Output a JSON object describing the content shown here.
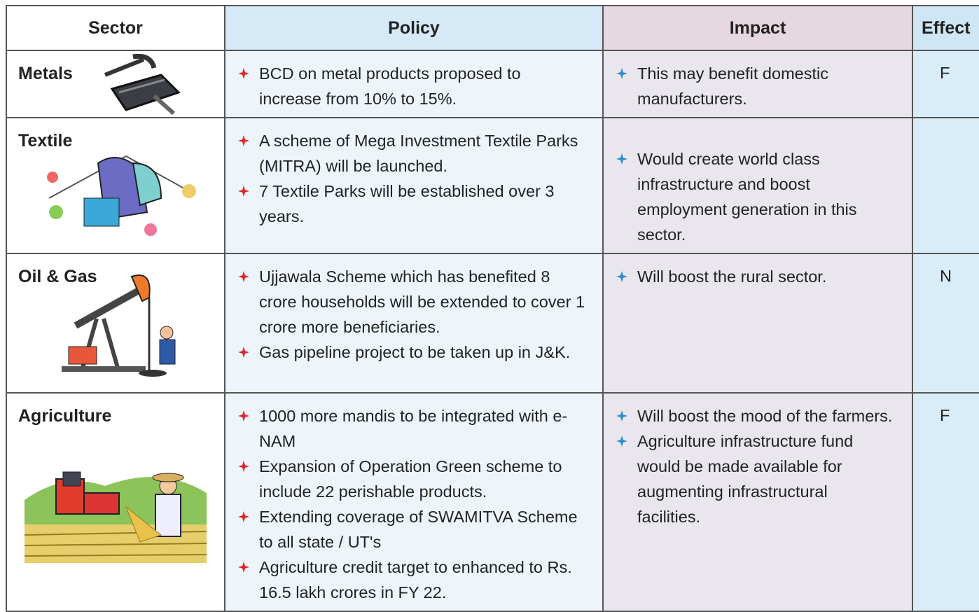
{
  "header": [
    "Sector",
    "Policy",
    "Impact",
    "Effect"
  ],
  "rows": [
    {
      "sector": "Metals",
      "policy": [
        "BCD on metal products proposed to increase from 10% to 15%."
      ],
      "impact": [
        "This may benefit domestic manufacturers."
      ],
      "effect": "F"
    },
    {
      "sector": "Textile",
      "policy": [
        "A scheme of Mega Investment Textile Parks (MITRA) will be launched.",
        "7 Textile Parks will be established over 3 years."
      ],
      "impact": [
        "Would create world class infrastructure and boost employment generation in this sector."
      ]
    },
    {
      "sector": "Oil & Gas",
      "policy": [
        "Ujjawala Scheme which has benefited 8 crore households will be extended to cover 1 crore more beneficiaries.",
        "Gas pipeline project to be taken up in J&K."
      ],
      "impact": [
        "Will boost the rural sector."
      ],
      "effect": "N"
    },
    {
      "sector": "Agriculture",
      "policy": [
        "1000 more mandis to be integrated with e-NAM",
        "Expansion of Operation Green scheme to include 22 perishable products.",
        "Extending coverage of SWAMITVA Scheme to all state / UT's",
        "Agriculture credit target to enhanced to Rs. 16.5 lakh crores in FY 22."
      ],
      "impact": [
        "Will boost the mood of the farmers.",
        "Agriculture infrastructure fund would be made available for augmenting infrastructural facilities."
      ],
      "effect": "F"
    }
  ]
}
